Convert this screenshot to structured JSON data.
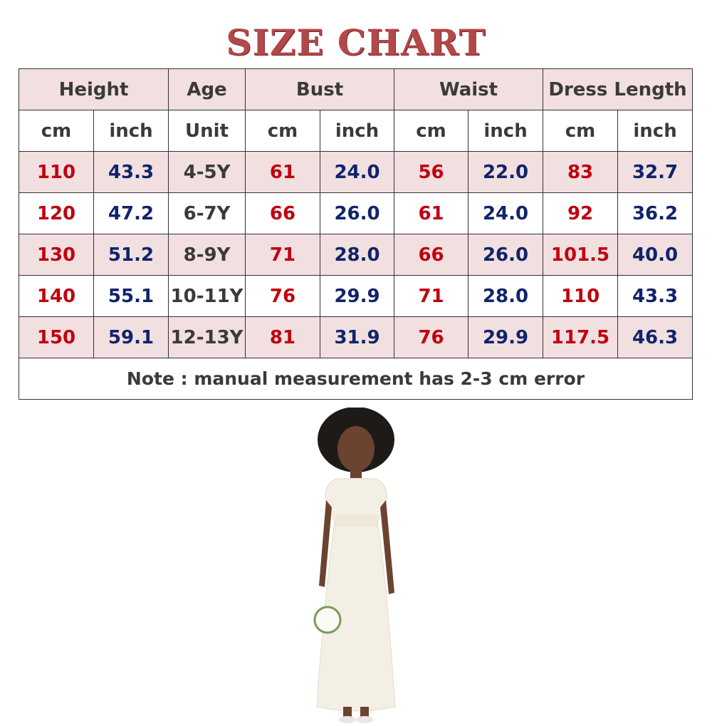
{
  "title": "SIZE CHART",
  "header": {
    "groups": [
      "Height",
      "Age",
      "Bust",
      "Waist",
      "Dress Length"
    ],
    "units": [
      "cm",
      "inch",
      "Unit",
      "cm",
      "inch",
      "cm",
      "inch",
      "cm",
      "inch"
    ]
  },
  "rows": [
    [
      "110",
      "43.3",
      "4-5Y",
      "61",
      "24.0",
      "56",
      "22.0",
      "83",
      "32.7"
    ],
    [
      "120",
      "47.2",
      "6-7Y",
      "66",
      "26.0",
      "61",
      "24.0",
      "92",
      "36.2"
    ],
    [
      "130",
      "51.2",
      "8-9Y",
      "71",
      "28.0",
      "66",
      "26.0",
      "101.5",
      "40.0"
    ],
    [
      "140",
      "55.1",
      "10-11Y",
      "76",
      "29.9",
      "71",
      "28.0",
      "110",
      "43.3"
    ],
    [
      "150",
      "59.1",
      "12-13Y",
      "81",
      "31.9",
      "76",
      "29.9",
      "117.5",
      "46.3"
    ]
  ],
  "note": "Note : manual measurement has 2-3 cm error",
  "colors": {
    "title": "#b2484a",
    "cm_values": "#c00010",
    "inch_values": "#10246a",
    "row_tint": "#f2dfe0"
  }
}
